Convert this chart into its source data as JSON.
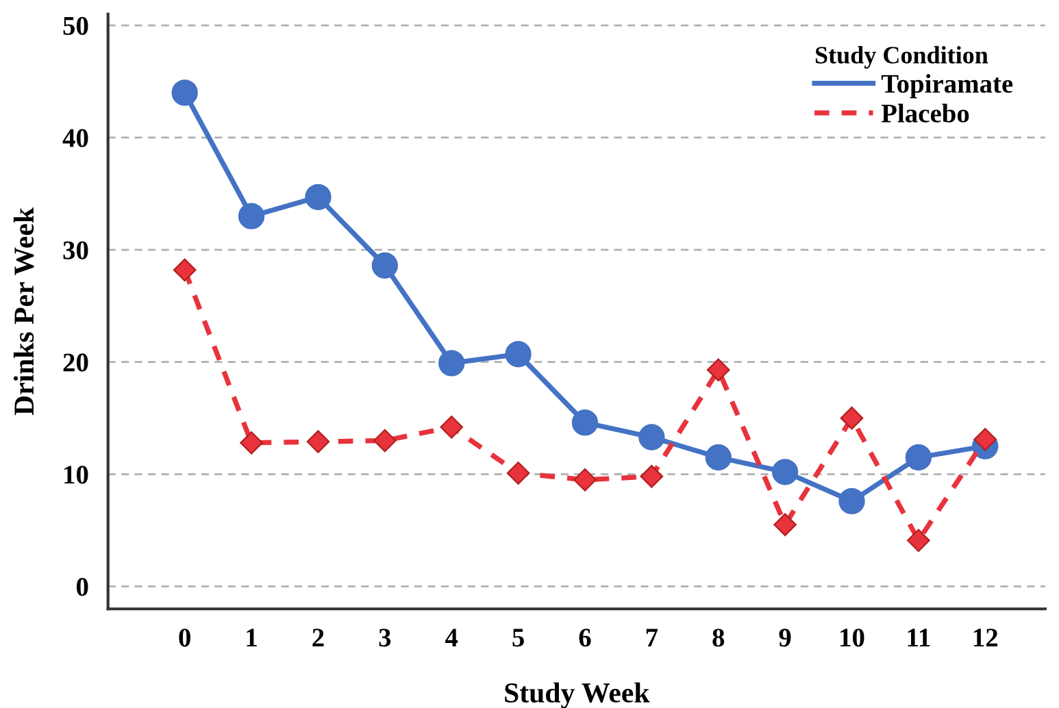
{
  "chart_data": {
    "type": "line",
    "xlabel": "Study Week",
    "ylabel": "Drinks Per Week",
    "legend_title": "Study Condition",
    "x": [
      0,
      1,
      2,
      3,
      4,
      5,
      6,
      7,
      8,
      9,
      10,
      11,
      12
    ],
    "series": [
      {
        "name": "Topiramate",
        "color": "#4472c4",
        "marker": "circle",
        "line_style": "solid",
        "values": [
          44,
          33,
          34.7,
          28.6,
          19.9,
          20.7,
          14.6,
          13.3,
          11.5,
          10.2,
          7.6,
          11.5,
          12.5
        ]
      },
      {
        "name": "Placebo",
        "color": "#e8333c",
        "marker": "diamond",
        "line_style": "dashed",
        "values": [
          28.2,
          12.8,
          12.9,
          13.0,
          14.2,
          10.1,
          9.5,
          9.8,
          19.3,
          5.5,
          15.0,
          4.1,
          13.1
        ]
      }
    ],
    "xlim": [
      -1.15,
      12.9
    ],
    "xticks": [
      0,
      1,
      2,
      3,
      4,
      5,
      6,
      7,
      8,
      9,
      10,
      11,
      12
    ],
    "ylim": [
      -2,
      51
    ],
    "yticks": [
      0,
      10,
      20,
      30,
      40,
      50
    ],
    "grid": "y",
    "legend": "top right"
  }
}
